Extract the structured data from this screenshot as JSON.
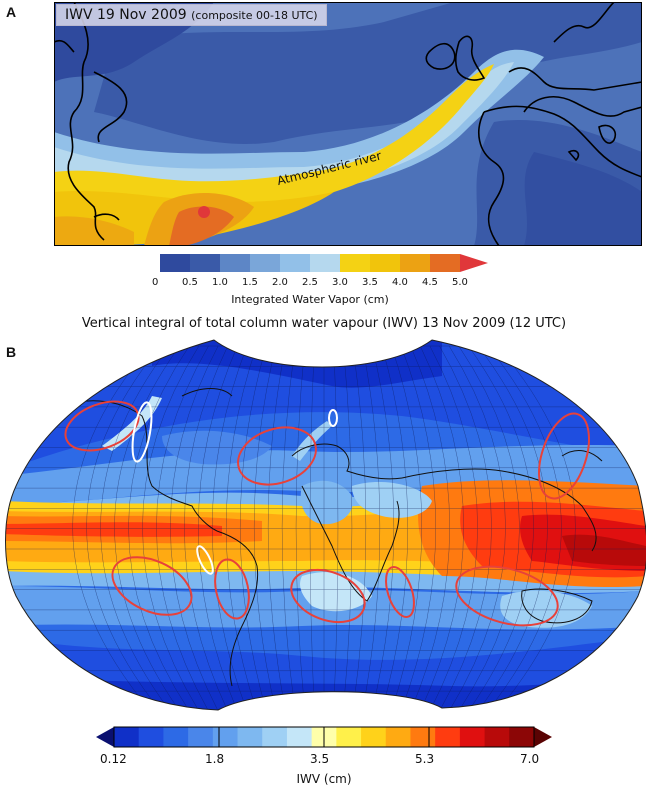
{
  "panelA": {
    "letter": "A",
    "title_main": "IWV 19 Nov 2009",
    "title_sub": "(composite 00-18 UTC)",
    "annotation": "Atmospheric  river",
    "colorbar": {
      "ticks": [
        "0",
        "0.5",
        "1.0",
        "1.5",
        "2.0",
        "2.5",
        "3.0",
        "3.5",
        "4.0",
        "4.5",
        "5.0"
      ],
      "colors": [
        "#2f4a9e",
        "#3a5aa8",
        "#5d86c6",
        "#7aa6d9",
        "#92c0e8",
        "#b5d8ee",
        "#f4d214",
        "#f1c40c",
        "#eca213",
        "#e46c23",
        "#e0373a"
      ],
      "label": "Integrated Water Vapor (cm)"
    }
  },
  "panelB": {
    "letter": "B",
    "title": "Vertical integral of total column water vapour (IWV) 13 Nov 2009 (12 UTC)",
    "colorbar": {
      "ticks": [
        "0.12",
        "1.8",
        "3.5",
        "5.3",
        "7.0"
      ],
      "colors": [
        "#1030c8",
        "#1f4ee0",
        "#2d6ae6",
        "#4a86ea",
        "#62a0ee",
        "#7eb8f0",
        "#9fd0f4",
        "#c4e6f8",
        "#ffffaa",
        "#fff04a",
        "#ffd21a",
        "#ffaa12",
        "#ff7a10",
        "#ff3c10",
        "#e01010",
        "#b80a0a",
        "#8c0606"
      ],
      "label": "IWV (cm)"
    }
  }
}
